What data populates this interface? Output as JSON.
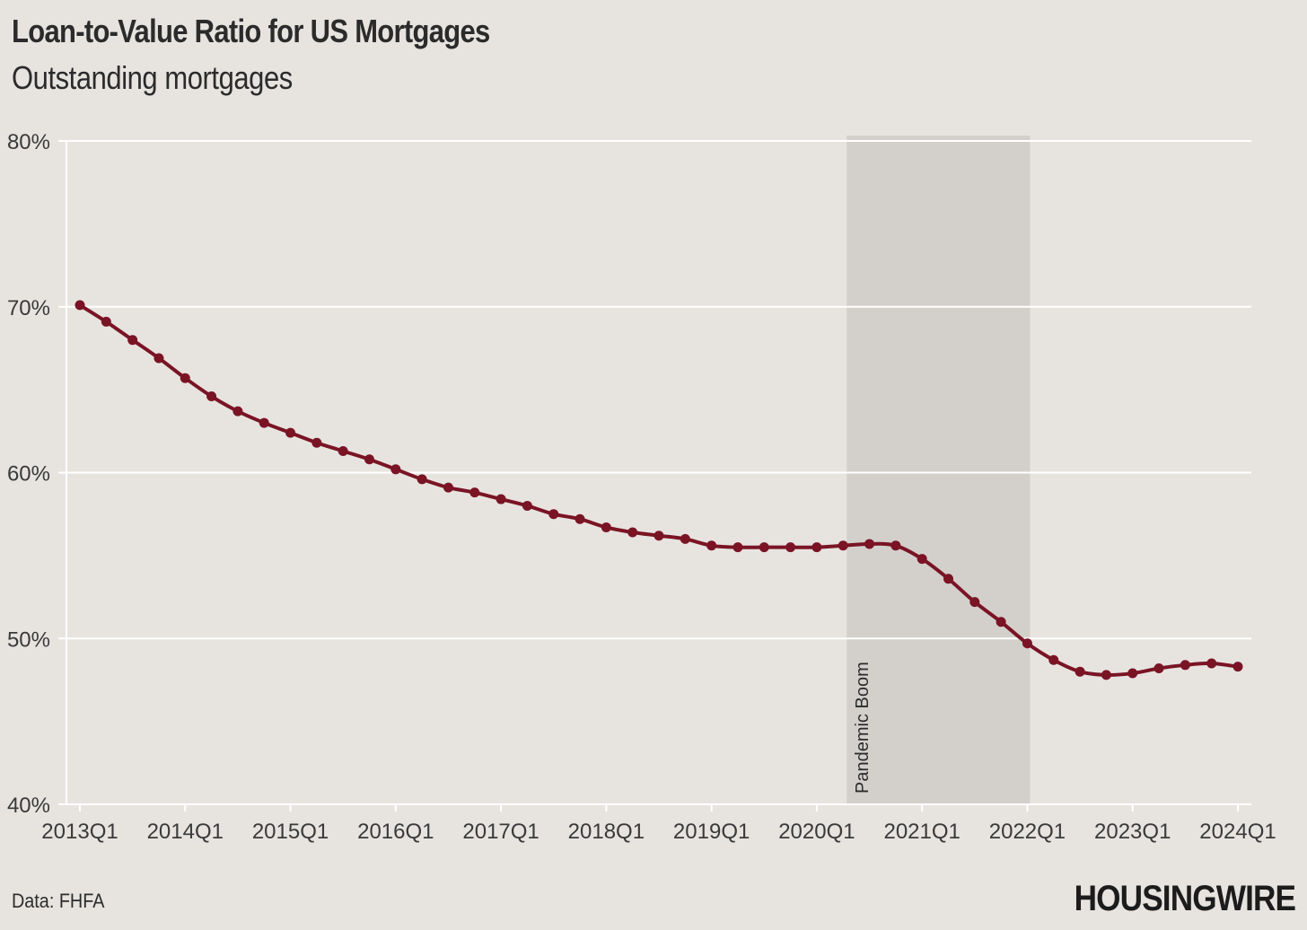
{
  "header": {
    "title": "Loan-to-Value Ratio for US Mortgages",
    "subtitle": "Outstanding mortgages"
  },
  "footer": {
    "source": "Data: FHFA",
    "brand": "HOUSINGWIRE"
  },
  "colors": {
    "background": "#e7e4e0",
    "line": "#7a1424",
    "grid": "#ffffff",
    "band": "#d3d0cc",
    "text": "#2b2b2b"
  },
  "chart_data": {
    "type": "line",
    "title": "Loan-to-Value Ratio for US Mortgages",
    "subtitle": "Outstanding mortgages",
    "xlabel": "",
    "ylabel": "",
    "ylim": [
      40,
      80
    ],
    "y_unit": "%",
    "yticks": [
      40,
      50,
      60,
      70,
      80
    ],
    "ytick_labels": [
      "40%",
      "50%",
      "60%",
      "70%",
      "80%"
    ],
    "xticks": [
      "2013Q1",
      "2014Q1",
      "2015Q1",
      "2016Q1",
      "2017Q1",
      "2018Q1",
      "2019Q1",
      "2020Q1",
      "2021Q1",
      "2022Q1",
      "2023Q1",
      "2024Q1"
    ],
    "grid": true,
    "markers": true,
    "x": [
      "2013Q1",
      "2013Q2",
      "2013Q3",
      "2013Q4",
      "2014Q1",
      "2014Q2",
      "2014Q3",
      "2014Q4",
      "2015Q1",
      "2015Q2",
      "2015Q3",
      "2015Q4",
      "2016Q1",
      "2016Q2",
      "2016Q3",
      "2016Q4",
      "2017Q1",
      "2017Q2",
      "2017Q3",
      "2017Q4",
      "2018Q1",
      "2018Q2",
      "2018Q3",
      "2018Q4",
      "2019Q1",
      "2019Q2",
      "2019Q3",
      "2019Q4",
      "2020Q1",
      "2020Q2",
      "2020Q3",
      "2020Q4",
      "2021Q1",
      "2021Q2",
      "2021Q3",
      "2021Q4",
      "2022Q1",
      "2022Q2",
      "2022Q3",
      "2022Q4",
      "2023Q1",
      "2023Q2",
      "2023Q3",
      "2023Q4",
      "2024Q1"
    ],
    "series": [
      {
        "values": [
          70.1,
          69.1,
          68.0,
          66.9,
          65.7,
          64.6,
          63.7,
          63.0,
          62.4,
          61.8,
          61.3,
          60.8,
          60.2,
          59.6,
          59.1,
          58.8,
          58.4,
          58.0,
          57.5,
          57.2,
          56.7,
          56.4,
          56.2,
          56.0,
          55.6,
          55.5,
          55.5,
          55.5,
          55.5,
          55.6,
          55.7,
          55.6,
          54.8,
          53.6,
          52.2,
          51.0,
          49.7,
          48.7,
          48.0,
          47.8,
          47.9,
          48.2,
          48.4,
          48.5,
          48.3
        ]
      }
    ],
    "shaded_regions": [
      {
        "start": "2020Q2",
        "end": "2022Q1",
        "label": "Pandemic Boom"
      }
    ]
  }
}
